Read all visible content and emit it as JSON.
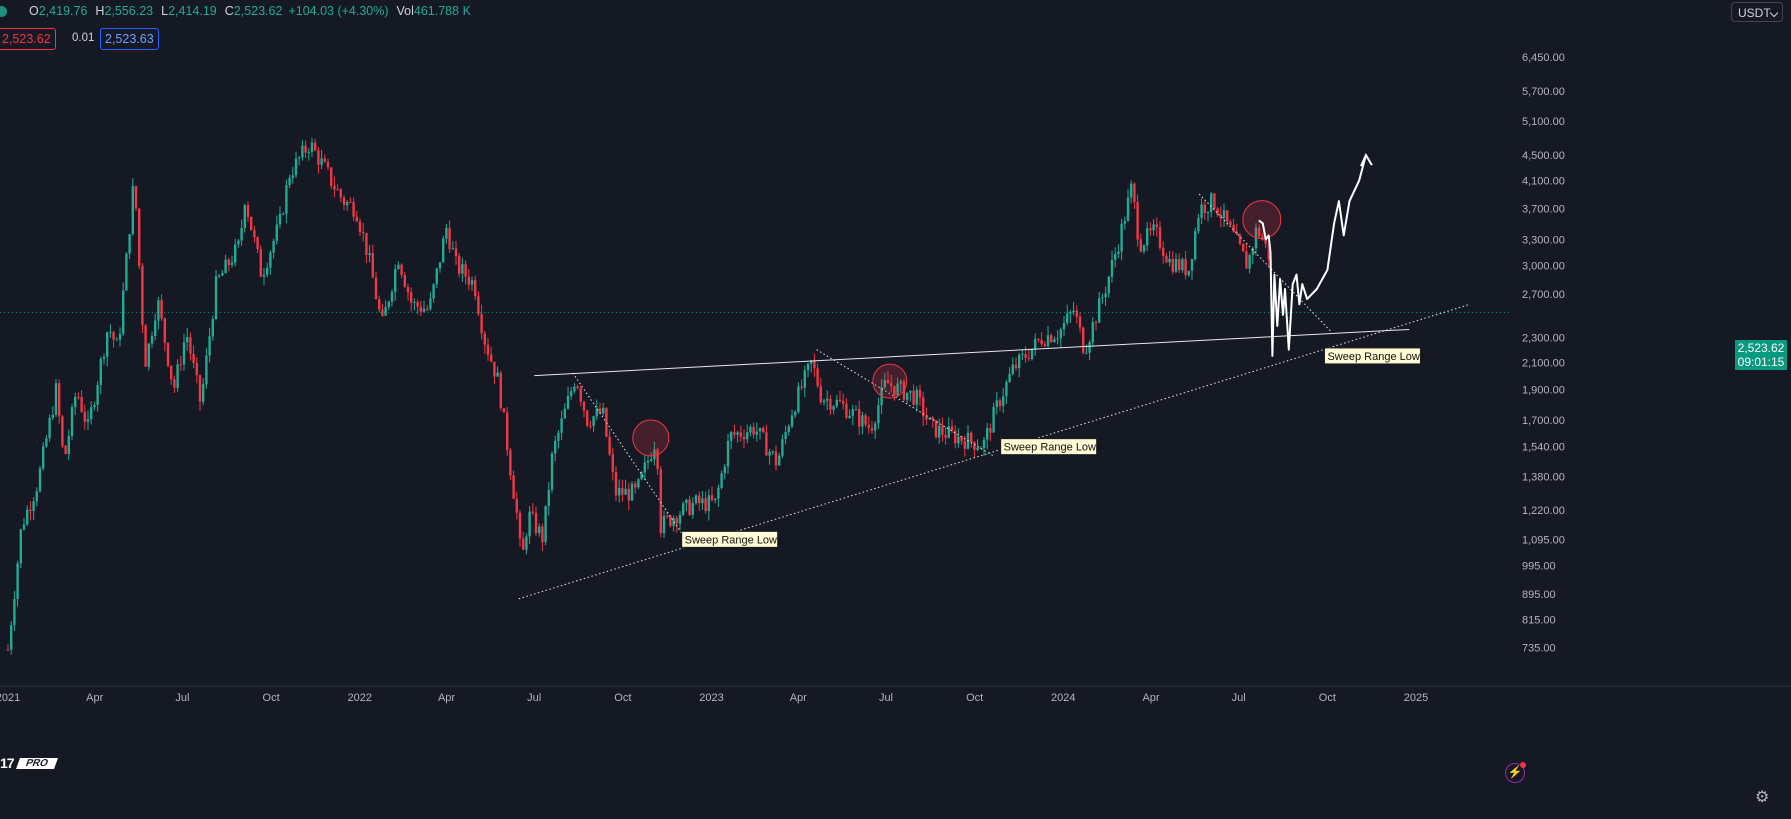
{
  "ohlc": {
    "open_label": "O",
    "open": "2,419.76",
    "high_label": "H",
    "high": "2,556.23",
    "low_label": "L",
    "low": "2,414.19",
    "close_label": "C",
    "close": "2,523.62",
    "change": "+104.03 (+4.30%)",
    "vol_label": "Vol",
    "volume": "461.788 K"
  },
  "trade": {
    "sell_price": "2,523.62",
    "spread": "0.01",
    "buy_price": "2,523.63"
  },
  "currency": "USDT",
  "current_price": {
    "price": "2,523.62",
    "countdown": "09:01:15"
  },
  "logo": {
    "brand": "17",
    "tier": "PRO"
  },
  "icons": {
    "bolt": "bolt-icon",
    "gear": "gear-icon",
    "dot": "symbol-status-dot"
  },
  "colors": {
    "up": "#22ab94",
    "down": "#f23645",
    "background": "#151924",
    "axis_text": "#b2b5be",
    "last_price": "#089981"
  },
  "chart_data": {
    "type": "candlestick",
    "y_scale": "log",
    "ylim": [
      700,
      7000
    ],
    "y_ticks": [
      {
        "label": "6,450.00",
        "value": 6450
      },
      {
        "label": "5,700.00",
        "value": 5700
      },
      {
        "label": "5,100.00",
        "value": 5100
      },
      {
        "label": "4,500.00",
        "value": 4500
      },
      {
        "label": "4,100.00",
        "value": 4100
      },
      {
        "label": "3,700.00",
        "value": 3700
      },
      {
        "label": "3,300.00",
        "value": 3300
      },
      {
        "label": "3,000.00",
        "value": 3000
      },
      {
        "label": "2,700.00",
        "value": 2700
      },
      {
        "label": "2,300.00",
        "value": 2300
      },
      {
        "label": "2,100.00",
        "value": 2100
      },
      {
        "label": "1,900.00",
        "value": 1900
      },
      {
        "label": "1,700.00",
        "value": 1700
      },
      {
        "label": "1,540.00",
        "value": 1540
      },
      {
        "label": "1,380.00",
        "value": 1380
      },
      {
        "label": "1,220.00",
        "value": 1220
      },
      {
        "label": "1,095.00",
        "value": 1095
      },
      {
        "label": "995.00",
        "value": 995
      },
      {
        "label": "895.00",
        "value": 895
      },
      {
        "label": "815.00",
        "value": 815
      },
      {
        "label": "735.00",
        "value": 735
      }
    ],
    "x_range": [
      "2021-01-01",
      "2025-02-26"
    ],
    "x_ticks": [
      {
        "label": "2021",
        "date": "2021-01-01"
      },
      {
        "label": "Apr",
        "date": "2021-04-01"
      },
      {
        "label": "Jul",
        "date": "2021-07-01"
      },
      {
        "label": "Oct",
        "date": "2021-10-01"
      },
      {
        "label": "2022",
        "date": "2022-01-01"
      },
      {
        "label": "Apr",
        "date": "2022-04-01"
      },
      {
        "label": "Jul",
        "date": "2022-07-01"
      },
      {
        "label": "Oct",
        "date": "2022-10-01"
      },
      {
        "label": "2023",
        "date": "2023-01-01"
      },
      {
        "label": "Apr",
        "date": "2023-04-01"
      },
      {
        "label": "Jul",
        "date": "2023-07-01"
      },
      {
        "label": "Oct",
        "date": "2023-10-01"
      },
      {
        "label": "2024",
        "date": "2024-01-01"
      },
      {
        "label": "Apr",
        "date": "2024-04-01"
      },
      {
        "label": "Jul",
        "date": "2024-07-01"
      },
      {
        "label": "Oct",
        "date": "2024-10-01"
      },
      {
        "label": "2025",
        "date": "2025-01-01"
      }
    ],
    "close_path": [
      [
        "2021-01-01",
        730
      ],
      [
        "2021-01-15",
        1150
      ],
      [
        "2021-02-01",
        1350
      ],
      [
        "2021-02-20",
        1900
      ],
      [
        "2021-02-28",
        1450
      ],
      [
        "2021-03-13",
        1900
      ],
      [
        "2021-03-25",
        1650
      ],
      [
        "2021-04-15",
        2400
      ],
      [
        "2021-04-25",
        2200
      ],
      [
        "2021-05-12",
        4150
      ],
      [
        "2021-05-20",
        2500
      ],
      [
        "2021-05-24",
        2100
      ],
      [
        "2021-06-05",
        2650
      ],
      [
        "2021-06-22",
        1900
      ],
      [
        "2021-07-05",
        2350
      ],
      [
        "2021-07-20",
        1800
      ],
      [
        "2021-08-05",
        2800
      ],
      [
        "2021-08-30",
        3250
      ],
      [
        "2021-09-03",
        3900
      ],
      [
        "2021-09-21",
        2900
      ],
      [
        "2021-10-10",
        3500
      ],
      [
        "2021-10-20",
        4200
      ],
      [
        "2021-11-10",
        4700
      ],
      [
        "2021-11-25",
        4300
      ],
      [
        "2021-12-04",
        4050
      ],
      [
        "2021-12-15",
        3800
      ],
      [
        "2021-12-28",
        3700
      ],
      [
        "2022-01-10",
        3100
      ],
      [
        "2022-01-24",
        2400
      ],
      [
        "2022-02-10",
        3100
      ],
      [
        "2022-02-24",
        2600
      ],
      [
        "2022-03-14",
        2550
      ],
      [
        "2022-04-01",
        3450
      ],
      [
        "2022-04-11",
        3000
      ],
      [
        "2022-04-30",
        2800
      ],
      [
        "2022-05-10",
        2300
      ],
      [
        "2022-05-25",
        1950
      ],
      [
        "2022-06-13",
        1200
      ],
      [
        "2022-06-18",
        1000
      ],
      [
        "2022-06-25",
        1200
      ],
      [
        "2022-07-10",
        1100
      ],
      [
        "2022-07-20",
        1500
      ],
      [
        "2022-08-13",
        2000
      ],
      [
        "2022-08-25",
        1700
      ],
      [
        "2022-09-10",
        1750
      ],
      [
        "2022-09-23",
        1300
      ],
      [
        "2022-10-15",
        1300
      ],
      [
        "2022-11-05",
        1600
      ],
      [
        "2022-11-09",
        1150
      ],
      [
        "2022-11-25",
        1200
      ],
      [
        "2022-12-15",
        1250
      ],
      [
        "2023-01-05",
        1250
      ],
      [
        "2023-01-20",
        1600
      ],
      [
        "2023-02-15",
        1650
      ],
      [
        "2023-03-10",
        1450
      ],
      [
        "2023-03-25",
        1750
      ],
      [
        "2023-04-15",
        2100
      ],
      [
        "2023-04-25",
        1850
      ],
      [
        "2023-05-15",
        1800
      ],
      [
        "2023-06-15",
        1650
      ],
      [
        "2023-07-01",
        1950
      ],
      [
        "2023-07-15",
        1900
      ],
      [
        "2023-08-01",
        1850
      ],
      [
        "2023-08-17",
        1650
      ],
      [
        "2023-09-10",
        1600
      ],
      [
        "2023-10-10",
        1550
      ],
      [
        "2023-10-25",
        1800
      ],
      [
        "2023-11-10",
        2050
      ],
      [
        "2023-12-10",
        2300
      ],
      [
        "2023-12-28",
        2350
      ],
      [
        "2024-01-12",
        2550
      ],
      [
        "2024-01-23",
        2200
      ],
      [
        "2024-02-15",
        2800
      ],
      [
        "2024-02-28",
        3300
      ],
      [
        "2024-03-12",
        4000
      ],
      [
        "2024-03-20",
        3250
      ],
      [
        "2024-04-05",
        3400
      ],
      [
        "2024-04-20",
        3050
      ],
      [
        "2024-05-10",
        2950
      ],
      [
        "2024-05-21",
        3700
      ],
      [
        "2024-06-05",
        3800
      ],
      [
        "2024-06-25",
        3350
      ],
      [
        "2024-07-10",
        3000
      ],
      [
        "2024-07-20",
        3450
      ],
      [
        "2024-08-02",
        3100
      ]
    ],
    "markers": {
      "projection_path": [
        [
          "2024-07-22",
          3540
        ],
        [
          "2024-07-26",
          3500
        ],
        [
          "2024-07-29",
          3300
        ],
        [
          "2024-08-01",
          3350
        ],
        [
          "2024-08-03",
          3150
        ],
        [
          "2024-08-05",
          2150
        ],
        [
          "2024-08-07",
          2900
        ],
        [
          "2024-08-10",
          2400
        ],
        [
          "2024-08-13",
          2850
        ],
        [
          "2024-08-16",
          2500
        ],
        [
          "2024-08-18",
          2750
        ],
        [
          "2024-08-22",
          2200
        ],
        [
          "2024-08-26",
          2800
        ],
        [
          "2024-08-30",
          2900
        ],
        [
          "2024-09-02",
          2600
        ],
        [
          "2024-09-05",
          2800
        ],
        [
          "2024-09-10",
          2650
        ],
        [
          "2024-09-20",
          2750
        ],
        [
          "2024-10-01",
          2950
        ],
        [
          "2024-10-08",
          3500
        ],
        [
          "2024-10-13",
          3800
        ],
        [
          "2024-10-18",
          3350
        ],
        [
          "2024-10-24",
          3800
        ],
        [
          "2024-11-03",
          4100
        ],
        [
          "2024-11-10",
          4500
        ]
      ],
      "trendlines": [
        {
          "style": "solid",
          "from": [
            "2022-07-01",
            2000
          ],
          "to": [
            "2024-12-25",
            2370
          ]
        },
        {
          "style": "dotted",
          "from": [
            "2022-06-15",
            880
          ],
          "to": [
            "2025-02-26",
            2600
          ]
        },
        {
          "style": "dotted",
          "from": [
            "2022-08-10",
            2020
          ],
          "to": [
            "2022-12-01",
            1120
          ]
        },
        {
          "style": "dotted",
          "from": [
            "2023-04-20",
            2200
          ],
          "to": [
            "2023-10-20",
            1490
          ]
        },
        {
          "style": "dotted",
          "from": [
            "2024-05-21",
            3900
          ],
          "to": [
            "2024-10-05",
            2350
          ]
        }
      ],
      "circles": [
        {
          "date": "2022-10-30",
          "price": 1590,
          "r": 18
        },
        {
          "date": "2023-07-05",
          "price": 1960,
          "r": 17
        },
        {
          "date": "2024-07-25",
          "price": 3550,
          "r": 19
        }
      ],
      "annotations": [
        {
          "text": "Sweep Range Lows",
          "date": "2022-12-01",
          "price": 1095
        },
        {
          "text": "Sweep Range Lows",
          "date": "2023-10-28",
          "price": 1540
        },
        {
          "text": "Sweep Range Lows",
          "date": "2024-09-28",
          "price": 2150
        }
      ],
      "current_price_line": 2523.62
    }
  }
}
